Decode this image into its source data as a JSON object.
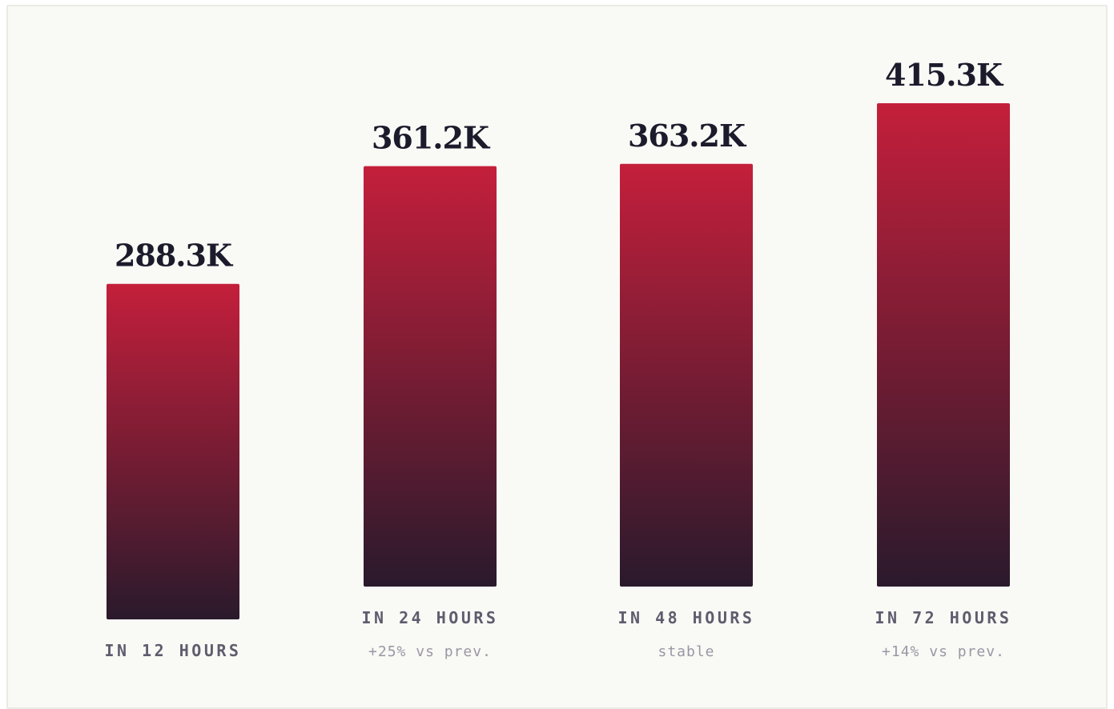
{
  "chart_data": {
    "type": "bar",
    "categories": [
      "IN 12 HOURS",
      "IN 24 HOURS",
      "IN 48 HOURS",
      "IN 72 HOURS"
    ],
    "values": [
      288.3,
      361.2,
      363.2,
      415.3
    ],
    "value_labels": [
      "288.3K",
      "361.2K",
      "363.2K",
      "415.3K"
    ],
    "notes": [
      "",
      "+25% vs prev.",
      "stable",
      "+14% vs prev."
    ],
    "unit": "K",
    "title": "",
    "xlabel": "",
    "ylabel": "",
    "grid": false,
    "colors": {
      "bar_top": "#c41f3b",
      "bar_bottom": "#2a1a2c",
      "value_text": "#1c1b2c",
      "category_text": "#5f5c6e",
      "note_text": "#9a97a4",
      "background": "#f9f9f5"
    }
  }
}
